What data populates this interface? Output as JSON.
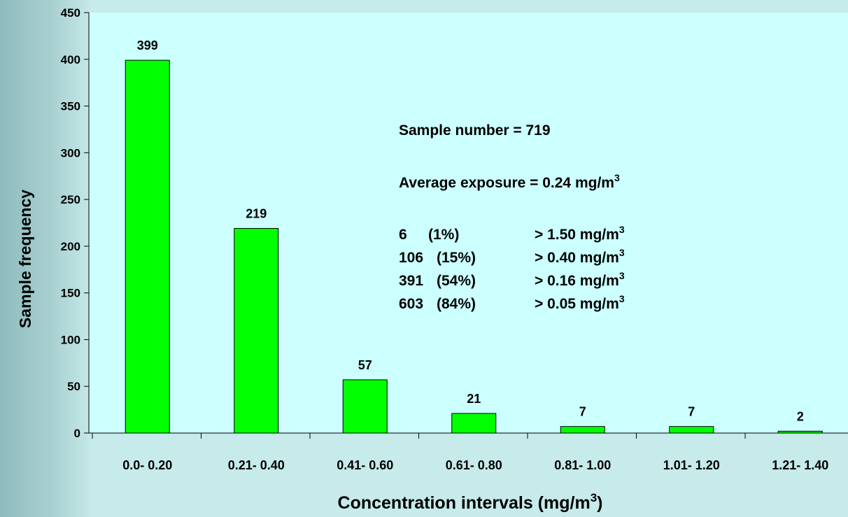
{
  "chart_data": {
    "type": "bar",
    "categories": [
      "0.0- 0.20",
      "0.21- 0.40",
      "0.41- 0.60",
      "0.61- 0.80",
      "0.81- 1.00",
      "1.01- 1.20",
      "1.21- 1.40"
    ],
    "values": [
      399,
      219,
      57,
      21,
      7,
      7,
      2
    ],
    "data_labels": [
      "399",
      "219",
      "57",
      "21",
      "7",
      "7",
      "2"
    ],
    "xlabel": "Concentration intervals (mg/m",
    "xlabel_sup": "3",
    "xlabel_suffix": ")",
    "ylabel": "Sample frequency",
    "ylim": [
      0,
      450
    ],
    "yticks": [
      0,
      50,
      100,
      150,
      200,
      250,
      300,
      350,
      400,
      450
    ],
    "grid": false,
    "bar_color": "#00ff00",
    "bar_edge_color": "#000000",
    "plot_background": "#ccffff",
    "annotations": {
      "sample_number": "Sample number = 719",
      "average_exposure": "Average exposure = 0.24 mg/m",
      "average_exposure_sup": "3",
      "rows": [
        {
          "count": "6",
          "percent": "(1%)",
          "threshold": "> 1.50 mg/m",
          "sup": "3"
        },
        {
          "count": "106",
          "percent": "(15%)",
          "threshold": "> 0.40 mg/m",
          "sup": "3"
        },
        {
          "count": "391",
          "percent": "(54%)",
          "threshold": "> 0.16 mg/m",
          "sup": "3"
        },
        {
          "count": "603",
          "percent": "(84%)",
          "threshold": "> 0.05 mg/m",
          "sup": "3"
        }
      ]
    }
  }
}
